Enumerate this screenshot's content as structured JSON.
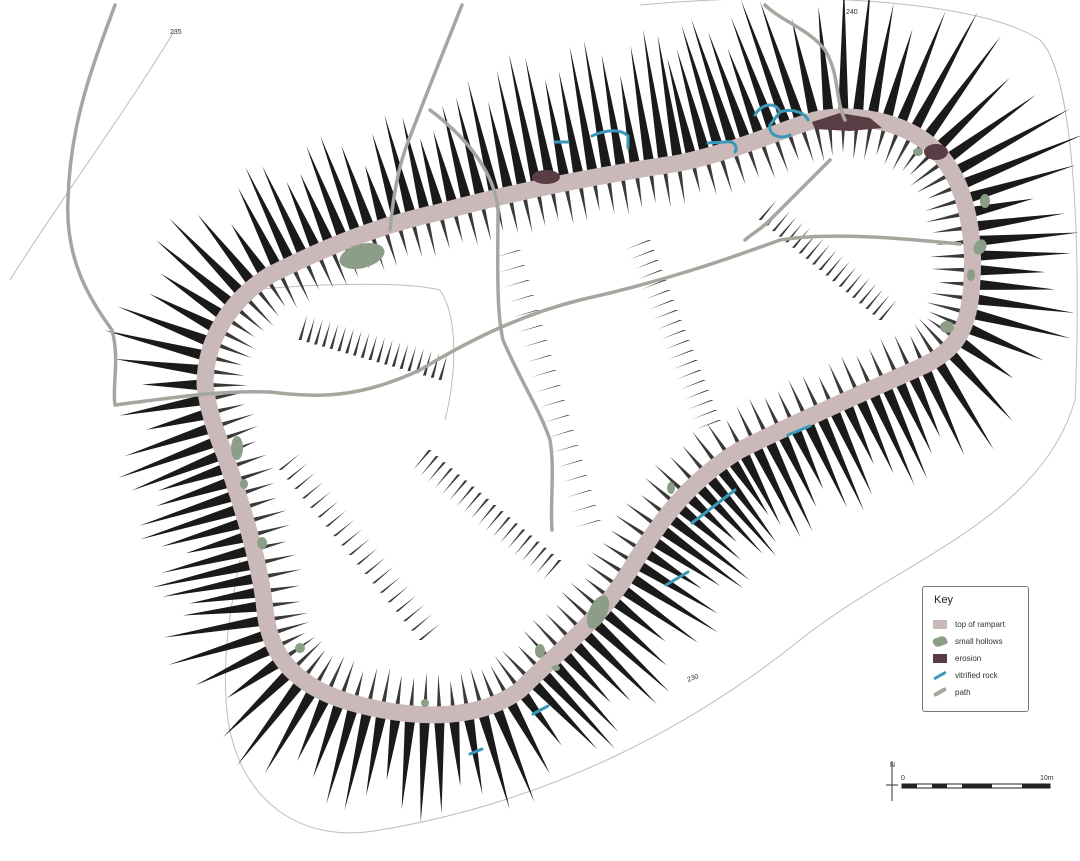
{
  "key": {
    "title": "Key",
    "items": [
      {
        "label": "top of rampart",
        "color": "#cbb8b8"
      },
      {
        "label": "small hollows",
        "color": "#8c9e87"
      },
      {
        "label": "erosion",
        "color": "#5a3c44"
      },
      {
        "label": "vitrified rock",
        "color": "#3a98b8"
      },
      {
        "label": "path",
        "color": "#a3a89f"
      }
    ]
  },
  "scale_bar": {
    "start_label": "0",
    "end_label": "10m"
  },
  "north_arrow": {
    "label": "N"
  },
  "contour_labels": [
    "235",
    "230",
    "240"
  ],
  "colors": {
    "rampart": "#cbb8b8",
    "hollow": "#8c9e87",
    "erosion": "#5a3c44",
    "vitrified": "#3a98b8",
    "path": "#a3a89f",
    "hachure_outer": "#1a1a1a",
    "contour": "#bdbdbd"
  }
}
